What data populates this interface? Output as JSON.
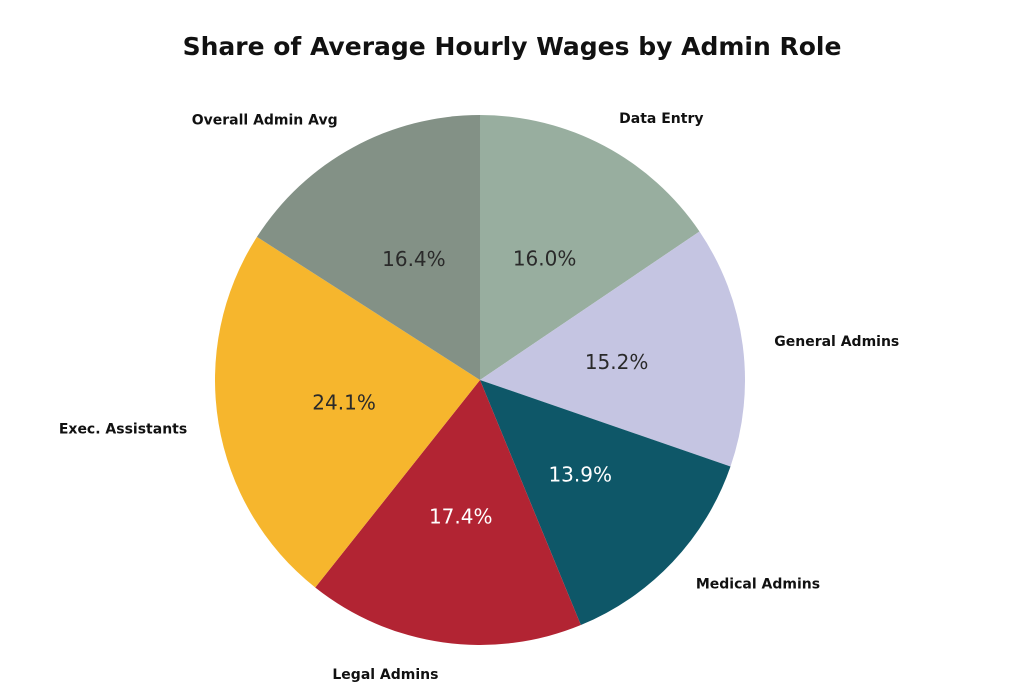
{
  "chart_data": {
    "type": "pie",
    "title": "Share of Average Hourly Wages by Admin Role",
    "slices": [
      {
        "label": "Data Entry",
        "value": 16.0,
        "display": "16.0%",
        "color": "#98ae9f",
        "text_color": "#2a2a2a"
      },
      {
        "label": "General Admins",
        "value": 15.2,
        "display": "15.2%",
        "color": "#c5c5e2",
        "text_color": "#2a2a2a"
      },
      {
        "label": "Medical Admins",
        "value": 13.9,
        "display": "13.9%",
        "color": "#0e5768",
        "text_color": "#ffffff"
      },
      {
        "label": "Legal Admins",
        "value": 17.4,
        "display": "17.4%",
        "color": "#b22433",
        "text_color": "#ffffff"
      },
      {
        "label": "Exec. Assistants",
        "value": 24.1,
        "display": "24.1%",
        "color": "#f6b62d",
        "text_color": "#2a2a2a"
      },
      {
        "label": "Overall Admin Avg",
        "value": 16.4,
        "display": "16.4%",
        "color": "#839186",
        "text_color": "#2a2a2a"
      }
    ],
    "start_angle": "12 o'clock",
    "direction": "clockwise",
    "legend": "none"
  }
}
